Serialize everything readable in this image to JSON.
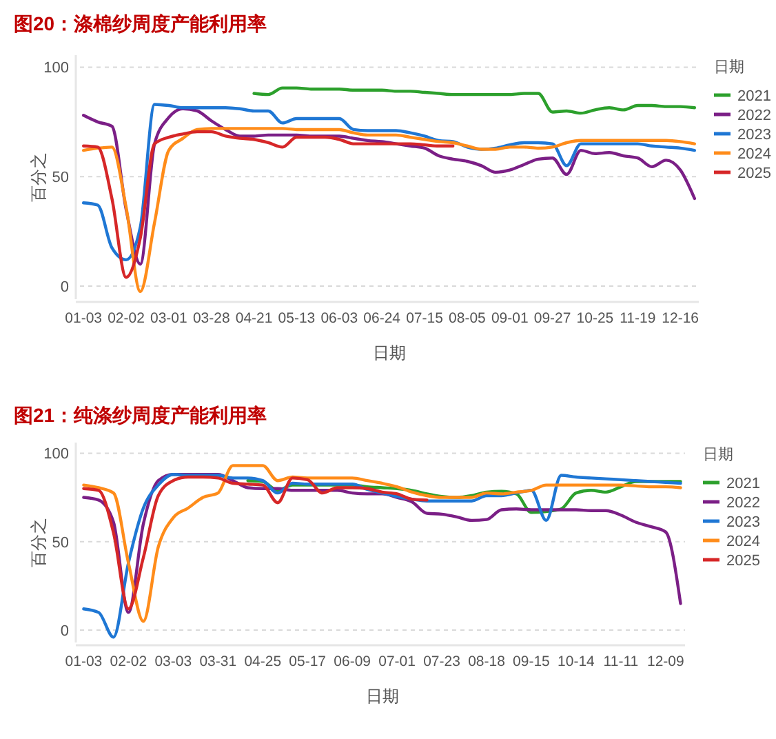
{
  "chart_data": [
    {
      "type": "line",
      "title": "图20：涤棉纱周度产能利用率",
      "xlabel": "日期",
      "ylabel": "百分之",
      "legend_title": "日期",
      "legend": "right",
      "grid": "y",
      "ylim": [
        -6,
        105.5
      ],
      "yticks": [
        0,
        50,
        100
      ],
      "categories": [
        "01-03",
        null,
        null,
        "02-02",
        null,
        null,
        "03-01",
        null,
        null,
        "03-28",
        null,
        null,
        "04-21",
        null,
        null,
        "05-13",
        null,
        null,
        "06-03",
        null,
        null,
        "06-24",
        null,
        null,
        "07-15",
        null,
        null,
        "08-05",
        null,
        null,
        "09-01",
        null,
        null,
        "09-27",
        null,
        null,
        "10-25",
        null,
        null,
        "11-19",
        null,
        null,
        "12-16",
        null
      ],
      "series": [
        {
          "name": "2021",
          "color": "#2ca02c",
          "values": [
            null,
            null,
            null,
            null,
            null,
            null,
            null,
            null,
            null,
            null,
            null,
            null,
            88,
            87.5,
            90.5,
            90.5,
            90,
            90,
            90,
            89.5,
            89.5,
            89.5,
            89,
            89,
            88.5,
            88,
            87.5,
            87.5,
            87.5,
            87.5,
            87.5,
            88,
            88,
            79.5,
            80,
            79,
            80.5,
            81.5,
            80.5,
            82.5,
            82.5,
            82,
            82,
            81.5
          ]
        },
        {
          "name": "2022",
          "color": "#7b1f86",
          "values": [
            78,
            75,
            73,
            35,
            10,
            65,
            77,
            81,
            80,
            75.5,
            71.5,
            68.5,
            68.5,
            69,
            69,
            69,
            68.5,
            68.5,
            68.5,
            67.5,
            66.5,
            66,
            65,
            64,
            63,
            59.5,
            58,
            57,
            55,
            52,
            53,
            55.5,
            58,
            58.5,
            51,
            62,
            60.5,
            61,
            59.5,
            58.5,
            54.5,
            57.5,
            53,
            40
          ]
        },
        {
          "name": "2023",
          "color": "#1f77d4",
          "values": [
            38,
            37,
            17.5,
            12,
            27,
            83,
            82.5,
            81.5,
            81.5,
            81.5,
            81.5,
            81,
            80,
            80,
            74.5,
            76.5,
            76.5,
            76.5,
            76.5,
            71.5,
            71,
            71,
            71,
            70,
            68.5,
            66.5,
            66,
            63.5,
            62.5,
            63,
            64.5,
            65.5,
            65.5,
            65,
            55,
            65,
            65,
            65,
            65,
            65,
            64,
            63.5,
            63,
            62
          ]
        },
        {
          "name": "2024",
          "color": "#ff8c1a",
          "values": [
            62,
            63,
            63.5,
            36,
            -2.5,
            29,
            62,
            67.5,
            71.5,
            72,
            72,
            72,
            72,
            72,
            72,
            71.5,
            71.5,
            71.5,
            71.5,
            70,
            69,
            69,
            69,
            68,
            67,
            66,
            65.5,
            64,
            62.5,
            62.5,
            63.5,
            63.5,
            63,
            63.5,
            65.5,
            66.5,
            66.5,
            66.5,
            66.5,
            66.5,
            66.5,
            66.5,
            66,
            65
          ]
        },
        {
          "name": "2025",
          "color": "#d62728",
          "values": [
            64,
            63.5,
            40,
            4,
            22,
            65,
            68,
            69.5,
            70.5,
            70.5,
            68.5,
            67.5,
            67,
            65.5,
            63.5,
            68,
            68,
            68,
            67,
            65,
            65,
            65,
            65,
            65,
            64.5,
            64,
            64,
            null,
            null,
            null,
            null,
            null,
            null,
            null,
            null,
            null,
            null,
            null,
            null,
            null,
            null,
            null,
            null,
            null
          ]
        }
      ]
    },
    {
      "type": "line",
      "title": "图21：纯涤纱周度产能利用率",
      "xlabel": "日期",
      "ylabel": "百分之",
      "legend_title": "日期",
      "legend": "right",
      "grid": "y",
      "ylim": [
        -7,
        106
      ],
      "yticks": [
        0,
        50,
        100
      ],
      "categories": [
        "01-03",
        null,
        null,
        "02-02",
        null,
        null,
        "03-03",
        null,
        null,
        "03-31",
        null,
        null,
        "04-25",
        null,
        null,
        "05-17",
        null,
        null,
        "06-09",
        null,
        null,
        "07-01",
        null,
        null,
        "07-23",
        null,
        null,
        "08-18",
        null,
        null,
        "09-15",
        null,
        null,
        "10-14",
        null,
        null,
        "11-11",
        null,
        null,
        "12-09",
        null
      ],
      "series": [
        {
          "name": "2021",
          "color": "#2ca02c",
          "values": [
            null,
            null,
            null,
            null,
            null,
            null,
            null,
            null,
            null,
            null,
            null,
            84.5,
            84,
            79,
            82,
            82,
            82,
            82,
            82,
            81,
            80.5,
            80,
            79,
            77,
            75.5,
            75,
            76,
            78,
            78.5,
            77,
            66.5,
            67,
            68.5,
            77.5,
            79,
            78,
            81,
            84,
            84,
            84,
            84
          ]
        },
        {
          "name": "2022",
          "color": "#7b1f86",
          "values": [
            75,
            73.5,
            61,
            10,
            60,
            84.5,
            88,
            88,
            88,
            88,
            84.5,
            80.5,
            80,
            80,
            79,
            79,
            79,
            79,
            77.5,
            77,
            77,
            75,
            72.5,
            66,
            65.5,
            64,
            62,
            62.5,
            68,
            68.5,
            68,
            68,
            68,
            68,
            67.5,
            67.5,
            65,
            61,
            58.5,
            55.5,
            15
          ]
        },
        {
          "name": "2023",
          "color": "#1f77d4",
          "values": [
            12,
            10,
            -4,
            38,
            69,
            82,
            88,
            87.5,
            87.5,
            87.5,
            86,
            86,
            84.5,
            77.5,
            83,
            82.5,
            82.5,
            82.5,
            82.5,
            79.5,
            77.5,
            75.5,
            74,
            73,
            73,
            73,
            73,
            76,
            76,
            77.5,
            79,
            62,
            87.5,
            86.5,
            86,
            85.5,
            85,
            84.5,
            84,
            83.5,
            83
          ]
        },
        {
          "name": "2024",
          "color": "#ff8c1a",
          "values": [
            82,
            80.5,
            77.5,
            38,
            5,
            47,
            63.5,
            69,
            75,
            77.5,
            93,
            93,
            93,
            84.5,
            86.5,
            86,
            86,
            86,
            86,
            84.5,
            83,
            81,
            78,
            76,
            75,
            75,
            75,
            77.5,
            77,
            78,
            79,
            82,
            82,
            82,
            82,
            82,
            82,
            81.5,
            81,
            81,
            80.5
          ]
        },
        {
          "name": "2025",
          "color": "#d62728",
          "values": [
            80,
            79,
            55,
            12,
            41,
            76,
            84.5,
            86.5,
            86.5,
            86,
            83,
            82.5,
            82,
            72,
            86,
            85,
            77.5,
            80.5,
            80.5,
            80,
            78,
            77,
            74,
            73.5,
            null,
            null,
            null,
            null,
            null,
            null,
            null,
            null,
            null,
            null,
            null,
            null,
            null,
            null,
            null,
            null,
            null
          ]
        }
      ]
    }
  ]
}
